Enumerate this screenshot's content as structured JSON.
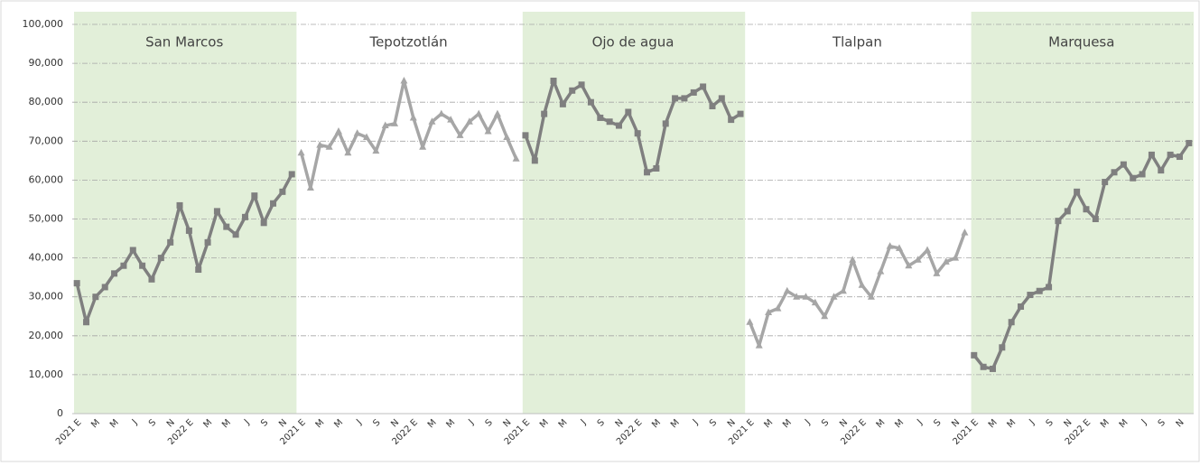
{
  "chart_data": {
    "type": "line",
    "categories": [
      "2021 E",
      null,
      "M",
      null,
      "M",
      null,
      "J",
      null,
      "S",
      null,
      "N",
      null,
      "2022 E",
      null,
      "M",
      null,
      "M",
      null,
      "J",
      null,
      "S",
      null,
      "N",
      null
    ],
    "ylim": [
      0,
      100000
    ],
    "yticks": [
      0,
      {
        "value": 10000,
        "label": "10,000"
      },
      {
        "value": 20000,
        "label": "20,000"
      },
      {
        "value": 30000,
        "label": "30,000"
      },
      {
        "value": 40000,
        "label": "40,000"
      },
      {
        "value": 50000,
        "label": "50,000"
      },
      {
        "value": 60000,
        "label": "60,000"
      },
      {
        "value": 70000,
        "label": "70,000"
      },
      {
        "value": 80000,
        "label": "80,000"
      },
      {
        "value": 90000,
        "label": "90,000"
      },
      {
        "value": 100000,
        "label": "100,000"
      }
    ],
    "grid": true,
    "shade_color": "#e2efd9",
    "series": [
      {
        "name": "San Marcos",
        "color": "#7f7f7f",
        "marker": "square",
        "shaded": true,
        "values": [
          33500,
          23500,
          30000,
          32500,
          36000,
          38000,
          42000,
          38000,
          34500,
          40000,
          44000,
          53500,
          47000,
          37000,
          44000,
          52000,
          48000,
          46000,
          50500,
          56000,
          49000,
          54000,
          57000,
          61500
        ]
      },
      {
        "name": "Tepotzotlán",
        "color": "#a6a6a6",
        "marker": "triangle",
        "shaded": false,
        "values": [
          67000,
          58000,
          69000,
          68500,
          72500,
          67000,
          72000,
          71000,
          67500,
          74000,
          74500,
          85500,
          76000,
          68500,
          75000,
          77000,
          75500,
          71500,
          75000,
          77000,
          72500,
          77000,
          71000,
          65500
        ]
      },
      {
        "name": "Ojo de agua",
        "color": "#7f7f7f",
        "marker": "square",
        "shaded": true,
        "values": [
          71500,
          65000,
          77000,
          85500,
          79500,
          83000,
          84500,
          80000,
          76000,
          75000,
          74000,
          77500,
          72000,
          62000,
          63000,
          74500,
          81000,
          81000,
          82500,
          84000,
          79000,
          81000,
          75500,
          77000
        ]
      },
      {
        "name": "Tlalpan",
        "color": "#a6a6a6",
        "marker": "triangle",
        "shaded": false,
        "values": [
          23500,
          17500,
          26000,
          27000,
          31500,
          30000,
          30000,
          28500,
          25000,
          30000,
          31500,
          39500,
          33000,
          30000,
          36500,
          43000,
          42500,
          38000,
          39500,
          42000,
          36000,
          39000,
          40000,
          46500
        ]
      },
      {
        "name": "Marquesa",
        "color": "#7f7f7f",
        "marker": "square",
        "shaded": true,
        "values": [
          15000,
          12000,
          11500,
          17000,
          23500,
          27500,
          30500,
          31500,
          32500,
          49500,
          52000,
          57000,
          52500,
          50000,
          59500,
          62000,
          64000,
          60500,
          61500,
          66500,
          62500,
          66500,
          66000,
          69500
        ]
      }
    ]
  }
}
